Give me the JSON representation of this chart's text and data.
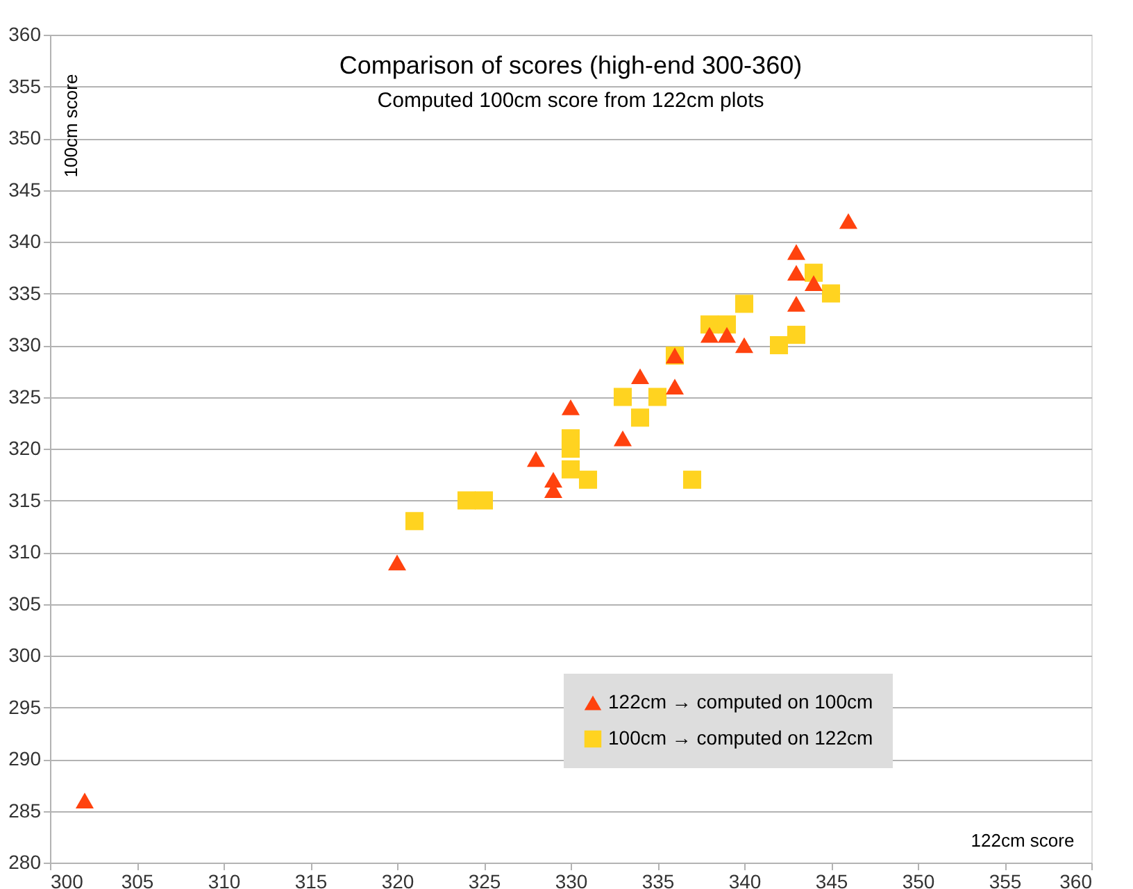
{
  "chart_data": {
    "type": "scatter",
    "title": "Comparison of scores (high-end 300-360)",
    "subtitle": "Computed 100cm score from 122cm plots",
    "xlabel": "122cm score",
    "ylabel": "100cm score",
    "series": [
      {
        "name": "122cm → computed on 100cm",
        "color": "#ff420e",
        "marker": "triangle",
        "x": [
          302,
          320,
          328,
          329,
          329,
          330,
          333,
          334,
          336,
          336,
          338,
          339,
          340,
          343,
          343,
          343,
          344,
          346
        ],
        "values": [
          286,
          309,
          319,
          317,
          316,
          324,
          321,
          327,
          329,
          326,
          331,
          331,
          330,
          339,
          337,
          334,
          336,
          342
        ]
      },
      {
        "name": "100cm → computed on 122cm",
        "color": "#ffd320",
        "marker": "square",
        "x": [
          321,
          324,
          325,
          330,
          330,
          330,
          331,
          333,
          334,
          335,
          336,
          337,
          338,
          339,
          340,
          342,
          343,
          344,
          345
        ],
        "values": [
          313,
          315,
          315,
          321,
          320,
          318,
          317,
          325,
          323,
          325,
          329,
          317,
          332,
          332,
          334,
          330,
          331,
          337,
          335
        ]
      }
    ],
    "xlim": [
      300,
      360
    ],
    "xticks": [
      300,
      305,
      310,
      315,
      320,
      325,
      330,
      335,
      340,
      345,
      350,
      355,
      360
    ],
    "ylim": [
      280,
      360
    ],
    "yticks": [
      280,
      285,
      290,
      295,
      300,
      305,
      310,
      315,
      320,
      325,
      330,
      335,
      340,
      345,
      350,
      355,
      360
    ],
    "grid": "y",
    "legend": "bottom right"
  }
}
